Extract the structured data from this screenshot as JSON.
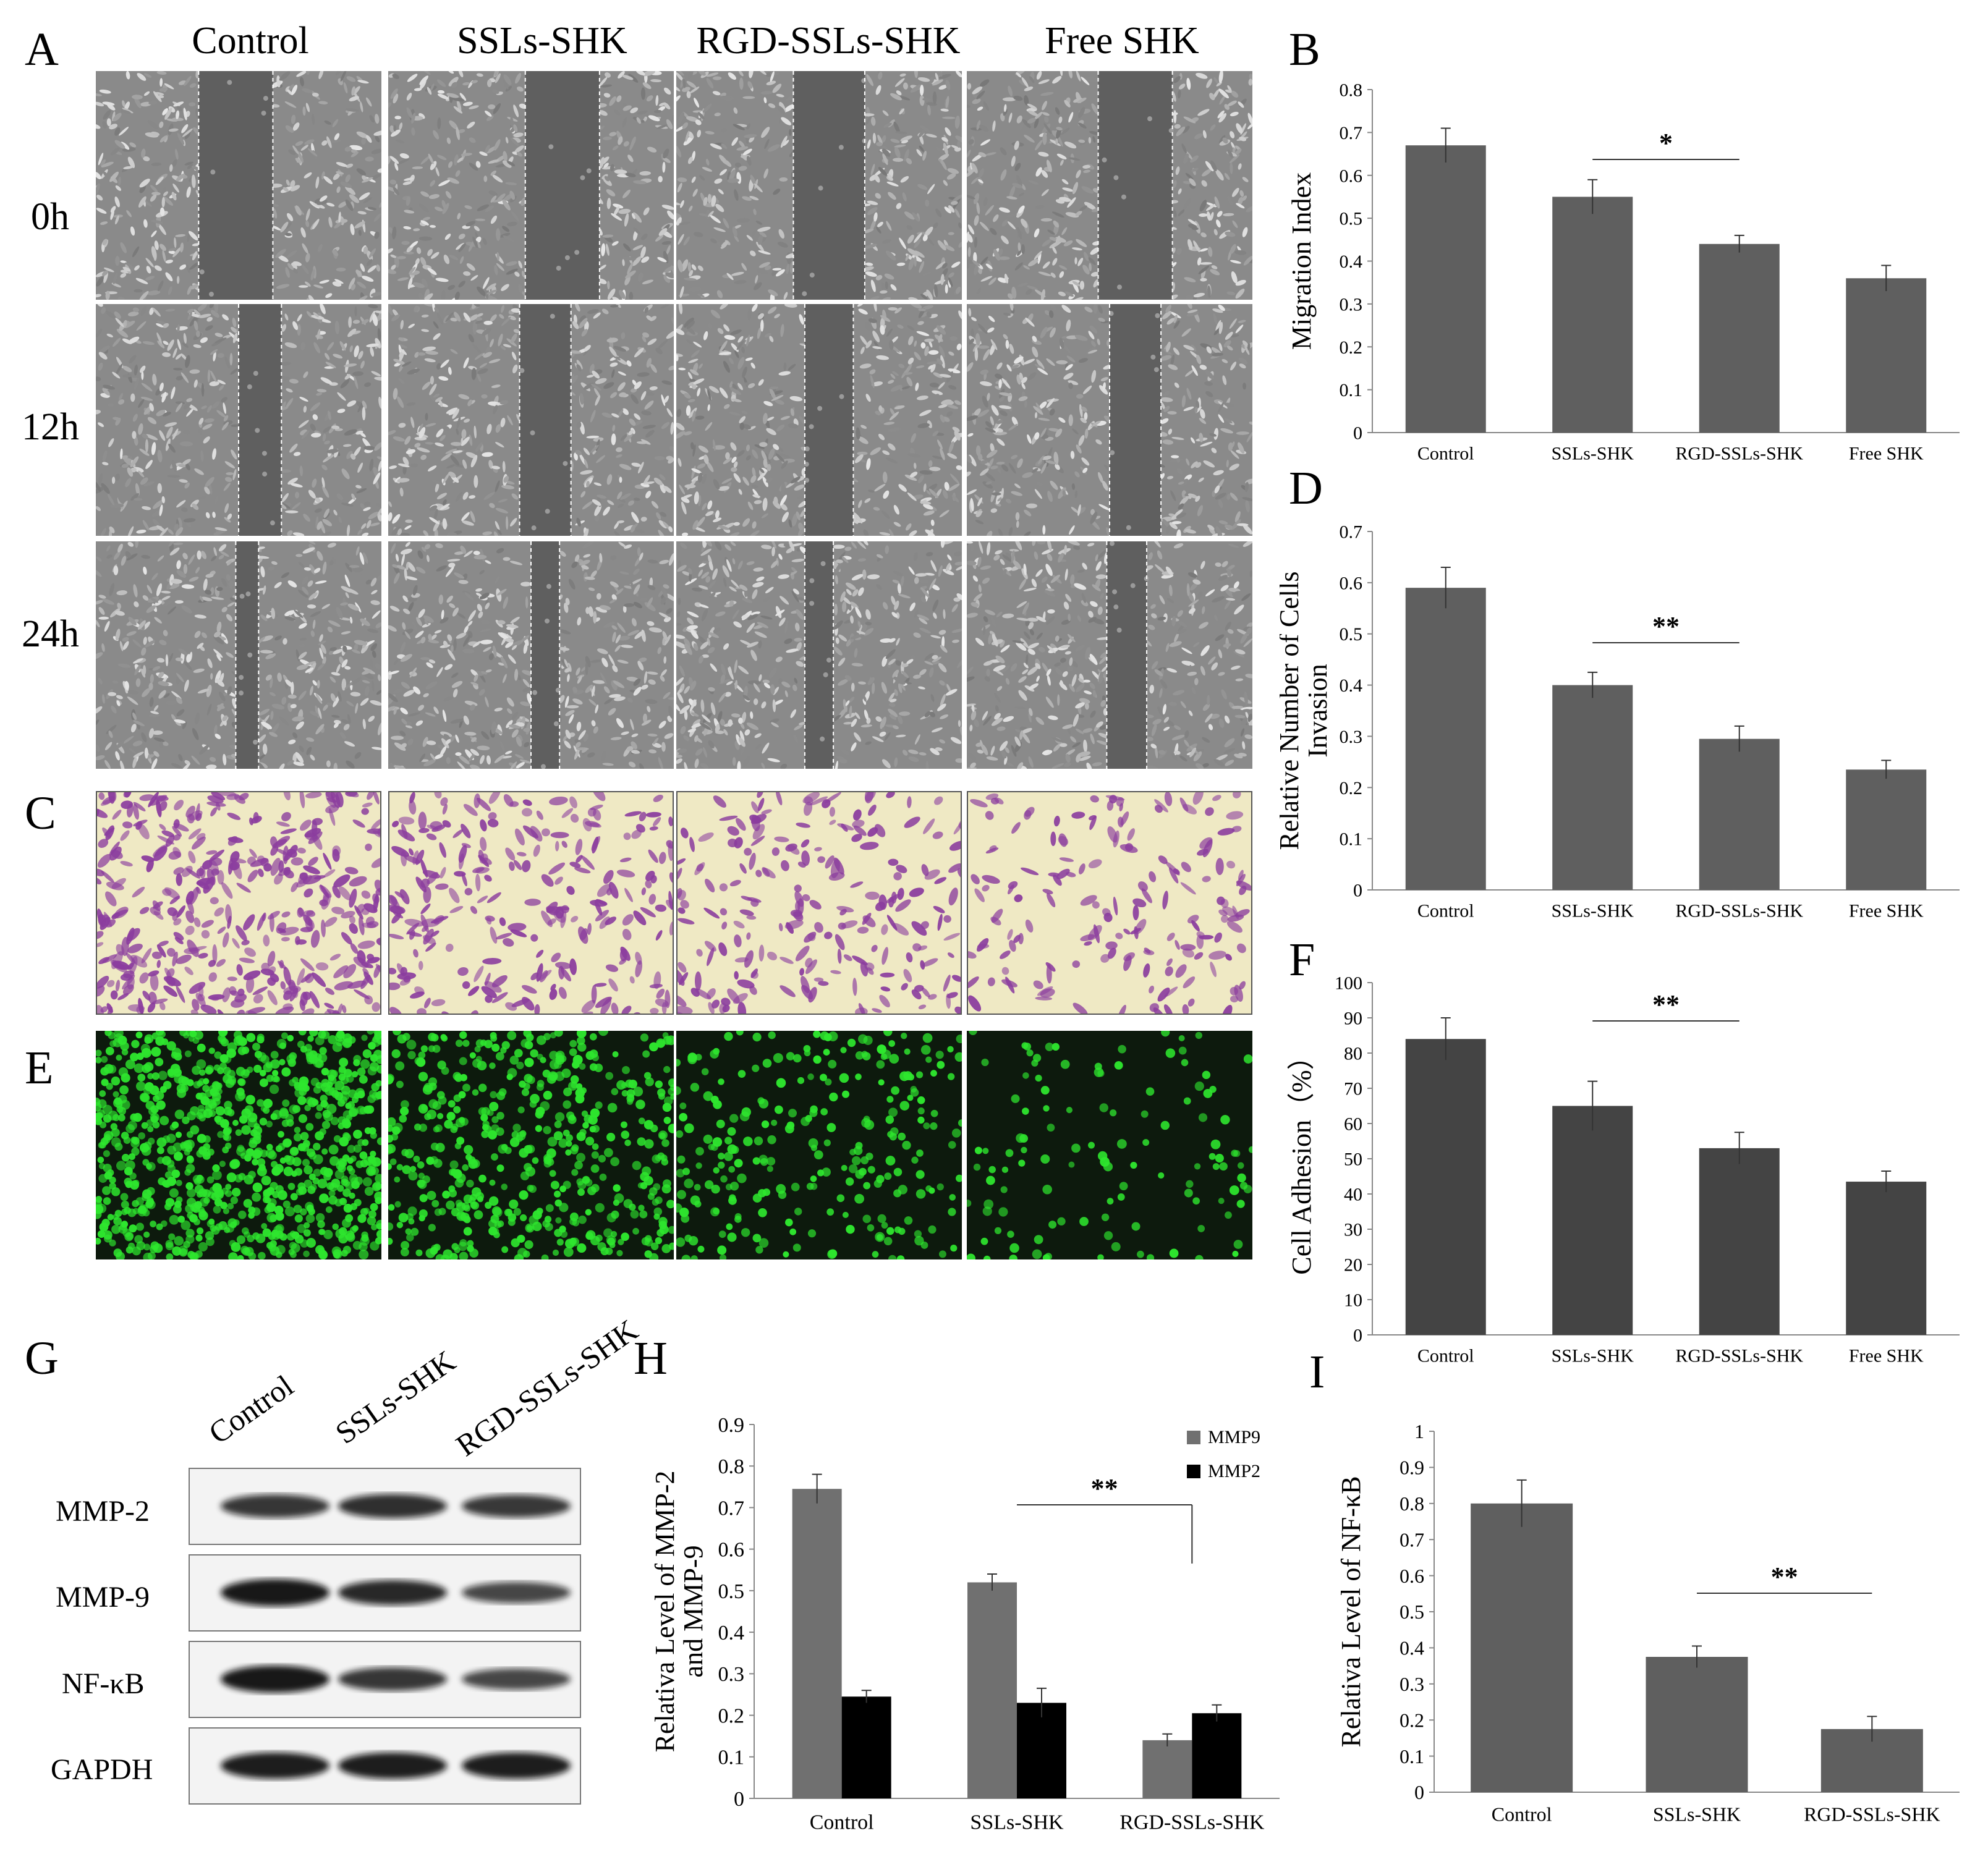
{
  "panels": {
    "A": "A",
    "B": "B",
    "C": "C",
    "D": "D",
    "E": "E",
    "F": "F",
    "G": "G",
    "H": "H",
    "I": "I"
  },
  "groups": [
    "Control",
    "SSLs-SHK",
    "RGD-SSLs-SHK",
    "Free SHK"
  ],
  "timepoints": [
    "0h",
    "12h",
    "24h"
  ],
  "colors": {
    "bar_gray": "#5f5f5f",
    "bar_dark": "#444444",
    "mmp9": "#707070",
    "mmp2": "#000000",
    "crystal_bg": "#efe9c4",
    "crystal_cell": "#8b3d9e",
    "fluor_bg": "#0d1a0d",
    "fluor_cell": "#2ee62e",
    "wound_cell_bg": "#8a8a8a",
    "wound_gap": "#5f5f5f"
  },
  "western": {
    "lanes": [
      "Control",
      "SSLs-SHK",
      "RGD-SSLs-SHK"
    ],
    "proteins": [
      "MMP-2",
      "MMP-9",
      "NF-κB",
      "GAPDH"
    ]
  },
  "chart_data": [
    {
      "id": "B",
      "type": "bar",
      "categories": [
        "Control",
        "SSLs-SHK",
        "RGD-SSLs-SHK",
        "Free SHK"
      ],
      "values": [
        0.67,
        0.55,
        0.44,
        0.36
      ],
      "errors": [
        0.04,
        0.04,
        0.02,
        0.03
      ],
      "ylabel": "Migration Index",
      "ylim": [
        0,
        0.8
      ],
      "yticks": [
        "0",
        "0.1",
        "0.2",
        "0.3",
        "0.4",
        "0.5",
        "0.6",
        "0.7",
        "0.8"
      ],
      "significance": {
        "label": "*",
        "from": 1,
        "to": 2
      }
    },
    {
      "id": "D",
      "type": "bar",
      "categories": [
        "Control",
        "SSLs-SHK",
        "RGD-SSLs-SHK",
        "Free SHK"
      ],
      "values": [
        0.59,
        0.4,
        0.295,
        0.235
      ],
      "errors": [
        0.04,
        0.025,
        0.025,
        0.018
      ],
      "ylabel": "Relative Number of Cells Invasion",
      "ylabel_lines": [
        "Relative Number of Cells",
        "Invasion"
      ],
      "ylim": [
        0,
        0.7
      ],
      "yticks": [
        "0",
        "0.1",
        "0.2",
        "0.3",
        "0.4",
        "0.5",
        "0.6",
        "0.7"
      ],
      "significance": {
        "label": "**",
        "from": 1,
        "to": 2
      }
    },
    {
      "id": "F",
      "type": "bar",
      "categories": [
        "Control",
        "SSLs-SHK",
        "RGD-SSLs-SHK",
        "Free SHK"
      ],
      "values": [
        84,
        65,
        53,
        43.5
      ],
      "errors": [
        6,
        7,
        4.5,
        3
      ],
      "ylabel": "Cell Adhesion（%）",
      "ylim": [
        0,
        100
      ],
      "yticks": [
        "0",
        "10",
        "20",
        "30",
        "40",
        "50",
        "60",
        "70",
        "80",
        "90",
        "100"
      ],
      "significance": {
        "label": "**",
        "from": 1,
        "to": 2
      }
    },
    {
      "id": "H",
      "type": "bar",
      "categories": [
        "Control",
        "SSLs-SHK",
        "RGD-SSLs-SHK"
      ],
      "series": [
        {
          "name": "MMP9",
          "values": [
            0.745,
            0.52,
            0.14
          ],
          "errors": [
            0.035,
            0.02,
            0.015
          ]
        },
        {
          "name": "MMP2",
          "values": [
            0.245,
            0.23,
            0.205
          ],
          "errors": [
            0.015,
            0.035,
            0.02
          ]
        }
      ],
      "ylabel": "Relativa Level of MMP-2 and MMP-9",
      "ylabel_lines": [
        "Relativa Level of MMP-2",
        "and MMP-9"
      ],
      "ylim": [
        0,
        0.9
      ],
      "yticks": [
        "0",
        "0.1",
        "0.2",
        "0.3",
        "0.4",
        "0.5",
        "0.6",
        "0.7",
        "0.8",
        "0.9"
      ],
      "legend": "top-right",
      "significance": {
        "label": "**",
        "from": 1,
        "to": 2
      }
    },
    {
      "id": "I",
      "type": "bar",
      "categories": [
        "Control",
        "SSLs-SHK",
        "RGD-SSLs-SHK"
      ],
      "values": [
        0.8,
        0.375,
        0.175
      ],
      "errors": [
        0.065,
        0.03,
        0.035
      ],
      "ylabel": "Relativa Level of NF-κB",
      "ylim": [
        0,
        1
      ],
      "yticks": [
        "0",
        "0.1",
        "0.2",
        "0.3",
        "0.4",
        "0.5",
        "0.6",
        "0.7",
        "0.8",
        "0.9",
        "1"
      ],
      "significance": {
        "label": "**",
        "from": 1,
        "to": 2
      }
    }
  ]
}
